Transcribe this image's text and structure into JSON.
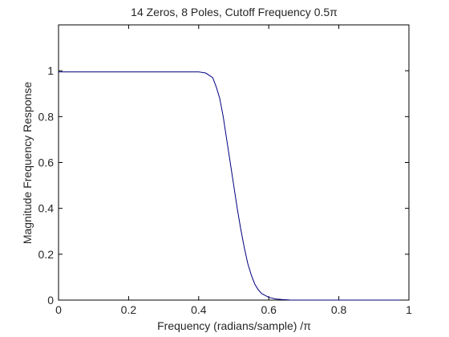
{
  "chart_data": {
    "type": "line",
    "title": "14 Zeros, 8 Poles, Cutoff Frequency 0.5π",
    "xlabel": "Frequency (radians/sample) /π",
    "ylabel": "Magnitude Frequency Response",
    "xlim": [
      0,
      1
    ],
    "ylim": [
      0,
      1.2
    ],
    "xticks": [
      "0",
      "0.2",
      "0.4",
      "0.6",
      "0.8",
      "1"
    ],
    "yticks": [
      "0",
      "0.2",
      "0.4",
      "0.6",
      "0.8",
      "1"
    ],
    "xtick_values": [
      0,
      0.2,
      0.4,
      0.6,
      0.8,
      1
    ],
    "ytick_values": [
      0,
      0.2,
      0.4,
      0.6,
      0.8,
      1
    ],
    "grid": false,
    "colors": {
      "line": "#00007f",
      "axes": "#000000",
      "text": "#262626"
    },
    "series": [
      {
        "x": [
          0,
          0.1,
          0.2,
          0.3,
          0.4,
          0.42,
          0.44,
          0.45,
          0.46,
          0.47,
          0.48,
          0.49,
          0.5,
          0.51,
          0.52,
          0.53,
          0.54,
          0.55,
          0.56,
          0.57,
          0.58,
          0.6,
          0.62,
          0.64,
          0.66,
          0.7,
          0.8,
          0.9,
          0.975
        ],
        "y": [
          0.995,
          0.995,
          0.995,
          0.995,
          0.995,
          0.99,
          0.97,
          0.93,
          0.88,
          0.8,
          0.7,
          0.6,
          0.5,
          0.4,
          0.31,
          0.23,
          0.16,
          0.11,
          0.07,
          0.045,
          0.028,
          0.012,
          0.005,
          0.002,
          0.0005,
          0.0,
          0.0,
          0.0,
          0.0
        ]
      }
    ]
  }
}
